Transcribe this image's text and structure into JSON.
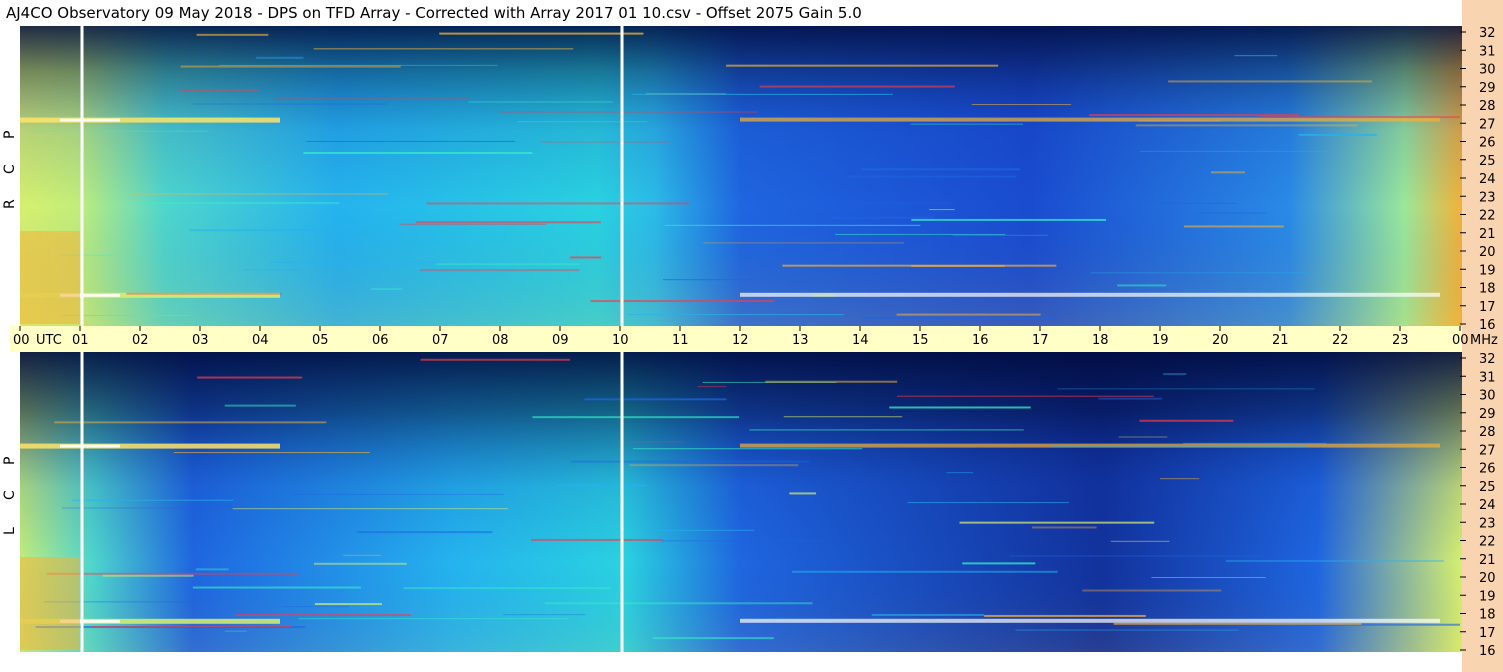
{
  "title": "AJ4CO Observatory  09 May 2018  -  DPS on TFD Array  -  Corrected with Array 2017 01 10.csv  -  Offset 2075  Gain 5.0",
  "chart_data": {
    "type": "heatmap",
    "title": "AJ4CO Observatory  09 May 2018  -  DPS on TFD Array  -  Corrected with Array 2017 01 10.csv  -  Offset 2075  Gain 5.0",
    "x_axis": {
      "unit_label": "UTC",
      "ticks": [
        "00",
        "01",
        "02",
        "03",
        "04",
        "05",
        "06",
        "07",
        "08",
        "09",
        "10",
        "11",
        "12",
        "13",
        "14",
        "15",
        "16",
        "17",
        "18",
        "19",
        "20",
        "21",
        "22",
        "23",
        "00"
      ],
      "range_hours": [
        0,
        24
      ]
    },
    "y_axis": {
      "unit_label": "MHz",
      "ticks": [
        "32",
        "31",
        "30",
        "29",
        "28",
        "27",
        "26",
        "25",
        "24",
        "23",
        "22",
        "21",
        "20",
        "19",
        "18",
        "17",
        "16"
      ],
      "range_mhz": [
        16,
        32
      ]
    },
    "panels": [
      {
        "name": "R C P",
        "letters": [
          "P",
          "C",
          "R"
        ]
      },
      {
        "name": "L C P",
        "letters": [
          "P",
          "C",
          "L"
        ]
      }
    ],
    "colormap": [
      "#000a3c",
      "#0a2a9c",
      "#1f66e0",
      "#25b3ee",
      "#37f0c8",
      "#d7f06e",
      "#f3b238",
      "#f03c4a",
      "#ff4fd8",
      "#ffffff"
    ],
    "gaps_utc_hours": [
      1.0,
      10.0
    ],
    "bright_bands_mhz": [
      27.2,
      17.6
    ],
    "grid": false,
    "legend": "none"
  },
  "colors": {
    "axis_strip": "#ffffc6",
    "right_margin": "#f9d4b0",
    "left_margin": "#ffffff"
  }
}
